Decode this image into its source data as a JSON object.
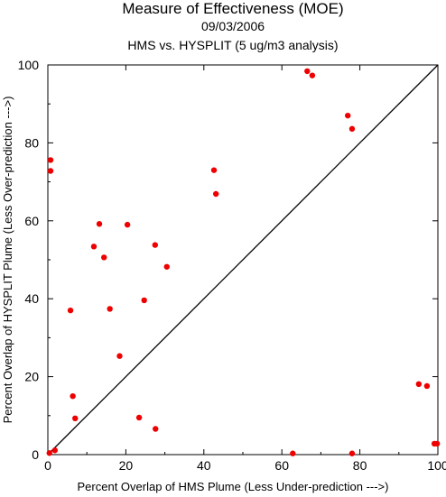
{
  "chart_data": {
    "type": "scatter",
    "title": "Measure of Effectiveness (MOE)",
    "subtitle": "09/03/2006",
    "subtitle2": "HMS vs. HYSPLIT  (5 ug/m3 analysis)",
    "xlabel": "Percent Overlap of HMS Plume (Less Under-prediction --->)",
    "ylabel": "Percent Overlap of HYSPLIT Plume (Less Over-prediction --->)",
    "xlim": [
      0,
      100
    ],
    "ylim": [
      0,
      100
    ],
    "xticks": [
      0,
      20,
      40,
      60,
      80,
      100
    ],
    "yticks": [
      0,
      20,
      40,
      60,
      80,
      100
    ],
    "grid": false,
    "reference_line": "y = x",
    "point_color": "#ee0000",
    "points": [
      {
        "x": 0.7,
        "y": 75.6
      },
      {
        "x": 0.7,
        "y": 72.8
      },
      {
        "x": 0.4,
        "y": 0.4
      },
      {
        "x": 1.8,
        "y": 1.1
      },
      {
        "x": 5.8,
        "y": 37.0
      },
      {
        "x": 6.4,
        "y": 15.0
      },
      {
        "x": 7.0,
        "y": 9.3
      },
      {
        "x": 11.8,
        "y": 53.4
      },
      {
        "x": 13.2,
        "y": 59.2
      },
      {
        "x": 14.4,
        "y": 50.6
      },
      {
        "x": 15.9,
        "y": 37.4
      },
      {
        "x": 18.4,
        "y": 25.3
      },
      {
        "x": 20.4,
        "y": 59.0
      },
      {
        "x": 23.4,
        "y": 9.5
      },
      {
        "x": 24.7,
        "y": 39.6
      },
      {
        "x": 27.5,
        "y": 53.8
      },
      {
        "x": 27.6,
        "y": 6.6
      },
      {
        "x": 30.5,
        "y": 48.2
      },
      {
        "x": 42.6,
        "y": 73.0
      },
      {
        "x": 43.1,
        "y": 66.9
      },
      {
        "x": 62.8,
        "y": 0.3
      },
      {
        "x": 66.5,
        "y": 98.4
      },
      {
        "x": 67.8,
        "y": 97.3
      },
      {
        "x": 76.9,
        "y": 87.0
      },
      {
        "x": 78.0,
        "y": 83.6
      },
      {
        "x": 78.0,
        "y": 0.3
      },
      {
        "x": 95.1,
        "y": 18.1
      },
      {
        "x": 97.2,
        "y": 17.6
      },
      {
        "x": 99.1,
        "y": 2.8
      },
      {
        "x": 99.8,
        "y": 2.8
      }
    ]
  }
}
